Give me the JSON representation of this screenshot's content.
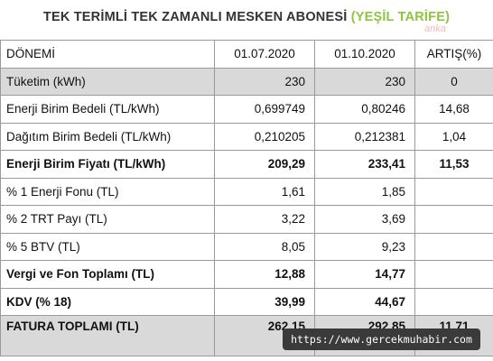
{
  "title": {
    "main": "TEK TERİMLİ TEK ZAMANLI MESKEN ABONESİ",
    "accent": "(YEŞİL TARİFE)",
    "accent_color": "#8cc63f"
  },
  "watermark": "anka",
  "source_badge": "https://www.gercekmuhabir.com",
  "table": {
    "headers": [
      "DÖNEMİ",
      "01.07.2020",
      "01.10.2020",
      "ARTIŞ(%)"
    ],
    "rows": [
      {
        "label": "Tüketim (kWh)",
        "v1": "230",
        "v2": "230",
        "change": "0",
        "style": "gray"
      },
      {
        "label": "Enerji Birim Bedeli (TL/kWh)",
        "v1": "0,699749",
        "v2": "0,80246",
        "change": "14,68",
        "style": ""
      },
      {
        "label": "Dağıtım Birim Bedeli (TL/kWh)",
        "v1": "0,210205",
        "v2": "0,212381",
        "change": "1,04",
        "style": ""
      },
      {
        "label": "Enerji Birim Fiyatı (TL/kWh)",
        "v1": "209,29",
        "v2": "233,41",
        "change": "11,53",
        "style": "bold"
      },
      {
        "label": "% 1 Enerji Fonu (TL)",
        "v1": "1,61",
        "v2": "1,85",
        "change": "",
        "style": ""
      },
      {
        "label": "% 2 TRT Payı (TL)",
        "v1": "3,22",
        "v2": "3,69",
        "change": "",
        "style": ""
      },
      {
        "label": "% 5 BTV (TL)",
        "v1": "8,05",
        "v2": "9,23",
        "change": "",
        "style": ""
      },
      {
        "label": "Vergi ve Fon Toplamı (TL)",
        "v1": "12,88",
        "v2": "14,77",
        "change": "",
        "style": "bold"
      },
      {
        "label": "KDV (% 18)",
        "v1": "39,99",
        "v2": "44,67",
        "change": "",
        "style": "bold"
      },
      {
        "label": "FATURA TOPLAMI (TL)",
        "v1": "262,15",
        "v2": "292,85",
        "change": "11,71",
        "style": "gray bold last"
      }
    ]
  }
}
